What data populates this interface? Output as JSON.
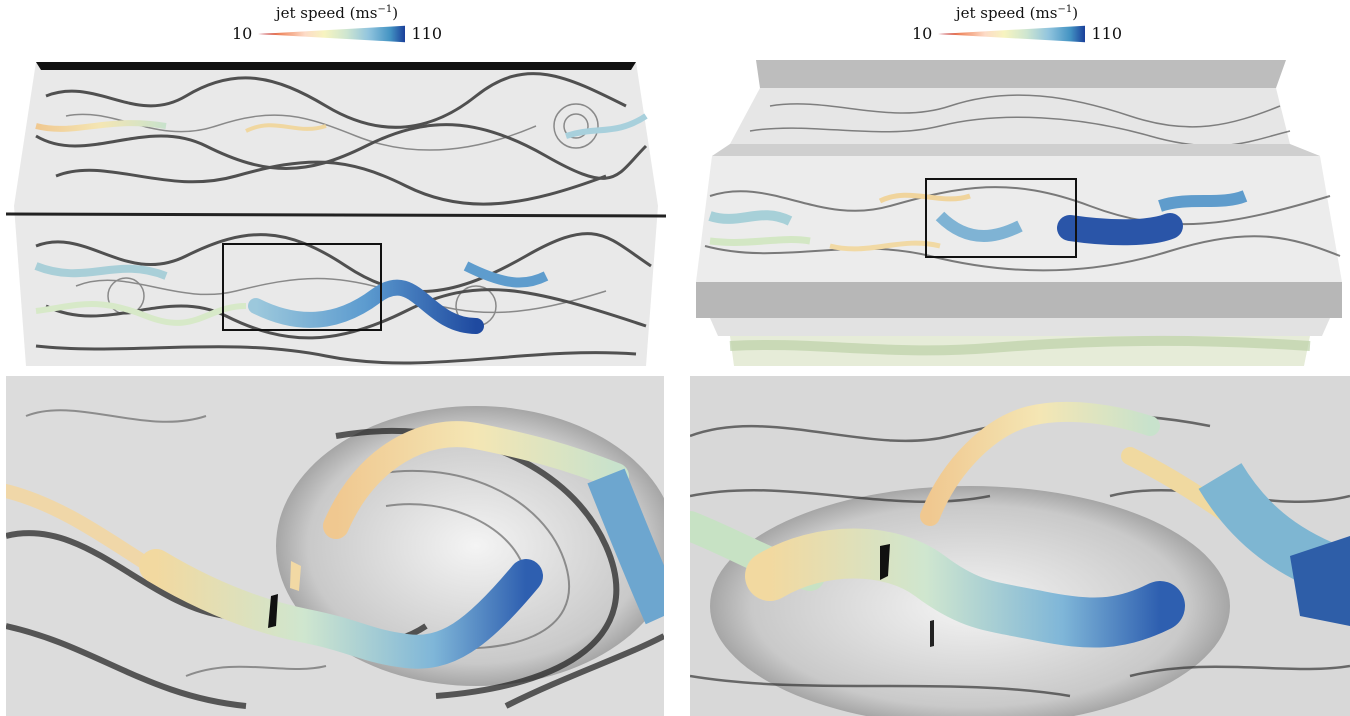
{
  "legends": [
    {
      "title": "jet speed (ms",
      "sup": "−1",
      "close": ")",
      "min": "10",
      "max": "110"
    },
    {
      "title": "jet speed (ms",
      "sup": "−1",
      "close": ")",
      "min": "10",
      "max": "110"
    }
  ],
  "colormap": [
    "#b2182b",
    "#ef8a62",
    "#fddbc7",
    "#f7f7c0",
    "#d1e5c8",
    "#92c5de",
    "#4393c3",
    "#2166ac",
    "#1a3f9a"
  ],
  "panels": [
    {
      "name": "top-left-overview",
      "has_zoom_box": true
    },
    {
      "name": "top-right-perspective",
      "has_zoom_box": true
    },
    {
      "name": "bottom-left-zoom"
    },
    {
      "name": "bottom-right-zoom"
    }
  ]
}
